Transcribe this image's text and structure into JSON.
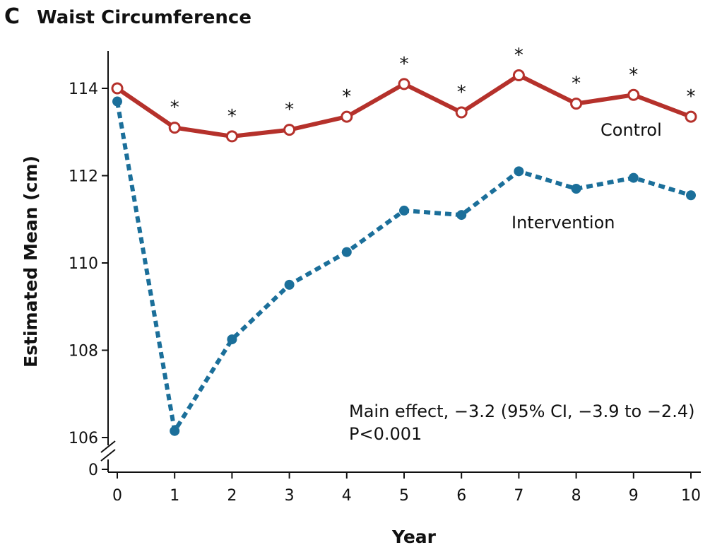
{
  "figure": {
    "panel_letter": "C",
    "title": "Waist Circumference"
  },
  "chart_data": {
    "type": "line",
    "xlabel": "Year",
    "ylabel": "Estimated Mean (cm)",
    "x": [
      0,
      1,
      2,
      3,
      4,
      5,
      6,
      7,
      8,
      9,
      10
    ],
    "x_tick_labels": [
      "0",
      "1",
      "2",
      "3",
      "4",
      "5",
      "6",
      "7",
      "8",
      "9",
      "10"
    ],
    "xlim": [
      0,
      10
    ],
    "ylim": [
      105.3,
      114.8
    ],
    "y_ticks": [
      106,
      108,
      110,
      112,
      114
    ],
    "y_tick_labels": [
      "106",
      "108",
      "110",
      "112",
      "114"
    ],
    "y_zero_label": "0",
    "axis_break": true,
    "grid": false,
    "series": [
      {
        "name": "Control",
        "values": [
          114.0,
          113.1,
          112.9,
          113.05,
          113.35,
          114.1,
          113.45,
          114.3,
          113.65,
          113.85,
          113.35
        ],
        "color": "#b5312b",
        "style": "solid",
        "marker": "open-circle"
      },
      {
        "name": "Intervention",
        "values": [
          113.7,
          106.15,
          108.25,
          109.5,
          110.25,
          111.2,
          111.1,
          112.1,
          111.7,
          111.95,
          111.55
        ],
        "color": "#1b6f9a",
        "style": "dotted",
        "marker": "filled-circle"
      }
    ],
    "significance_marker": "*",
    "significant_years": [
      1,
      2,
      3,
      4,
      5,
      6,
      7,
      8,
      9,
      10
    ],
    "annotation": {
      "line1": "Main effect, −3.2 (95% CI, −3.9 to −2.4)",
      "line2": "P<0.001"
    }
  }
}
